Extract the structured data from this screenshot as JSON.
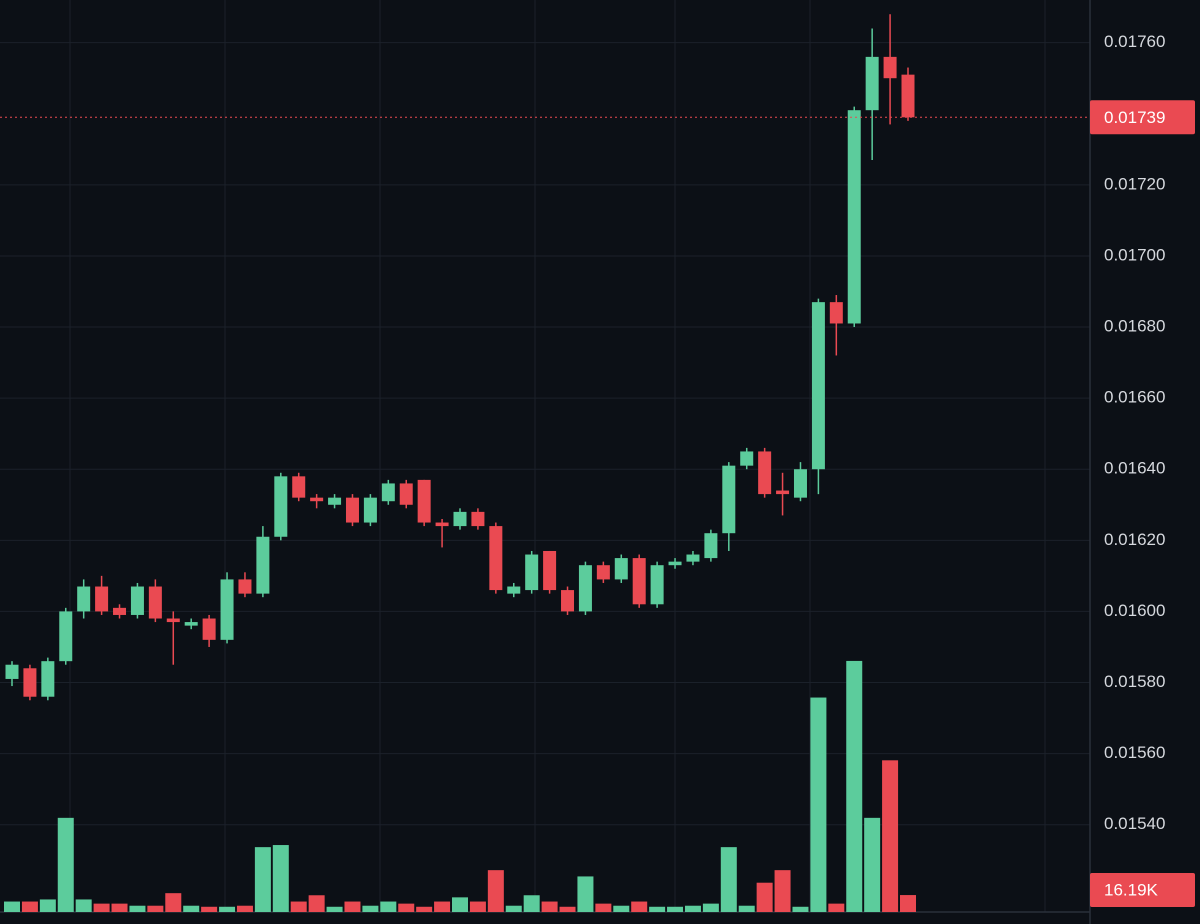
{
  "chart_data": {
    "type": "candlestick",
    "open": [
      0.01581,
      0.01584,
      0.01576,
      0.01586,
      0.016,
      0.01607,
      0.01601,
      0.01599,
      0.01607,
      0.01598,
      0.01596,
      0.01598,
      0.01592,
      0.01609,
      0.01605,
      0.01621,
      0.01638,
      0.01632,
      0.0163,
      0.01632,
      0.01625,
      0.01631,
      0.01636,
      0.01637,
      0.01625,
      0.01624,
      0.01628,
      0.01624,
      0.01605,
      0.01606,
      0.01617,
      0.01606,
      0.016,
      0.01613,
      0.01609,
      0.01615,
      0.01602,
      0.01613,
      0.01614,
      0.01615,
      0.01622,
      0.01641,
      0.01645,
      0.01634,
      0.01632,
      0.0164,
      0.01687,
      0.01681,
      0.01741,
      0.01756,
      0.01751
    ],
    "high": [
      0.01586,
      0.01585,
      0.01587,
      0.01601,
      0.01609,
      0.0161,
      0.01602,
      0.01608,
      0.01609,
      0.016,
      0.01598,
      0.01599,
      0.01611,
      0.01611,
      0.01624,
      0.01639,
      0.01639,
      0.01633,
      0.01633,
      0.01633,
      0.01633,
      0.01637,
      0.01637,
      0.01637,
      0.01626,
      0.01629,
      0.01629,
      0.01625,
      0.01608,
      0.01617,
      0.01617,
      0.01607,
      0.01614,
      0.01614,
      0.01616,
      0.01616,
      0.01614,
      0.01615,
      0.01617,
      0.01623,
      0.01642,
      0.01646,
      0.01646,
      0.01639,
      0.01642,
      0.01688,
      0.01689,
      0.01742,
      0.01764,
      0.01768,
      0.01753
    ],
    "low": [
      0.01579,
      0.01575,
      0.01575,
      0.01585,
      0.01598,
      0.01599,
      0.01598,
      0.01598,
      0.01597,
      0.01585,
      0.01595,
      0.0159,
      0.01591,
      0.01604,
      0.01604,
      0.0162,
      0.01631,
      0.01629,
      0.01629,
      0.01624,
      0.01624,
      0.0163,
      0.01629,
      0.01624,
      0.01618,
      0.01623,
      0.01623,
      0.01605,
      0.01604,
      0.01605,
      0.01605,
      0.01599,
      0.01599,
      0.01608,
      0.01608,
      0.01601,
      0.01601,
      0.01612,
      0.01613,
      0.01614,
      0.01617,
      0.0164,
      0.01632,
      0.01627,
      0.01631,
      0.01633,
      0.01672,
      0.0168,
      0.01727,
      0.01737,
      0.01738
    ],
    "close": [
      0.01585,
      0.01576,
      0.01586,
      0.016,
      0.01607,
      0.016,
      0.01599,
      0.01607,
      0.01598,
      0.01597,
      0.01597,
      0.01592,
      0.01609,
      0.01605,
      0.01621,
      0.01638,
      0.01632,
      0.01631,
      0.01632,
      0.01625,
      0.01632,
      0.01636,
      0.0163,
      0.01625,
      0.01624,
      0.01628,
      0.01624,
      0.01606,
      0.01607,
      0.01616,
      0.01606,
      0.016,
      0.01613,
      0.01609,
      0.01615,
      0.01602,
      0.01613,
      0.01614,
      0.01616,
      0.01622,
      0.01641,
      0.01645,
      0.01633,
      0.01633,
      0.0164,
      0.01687,
      0.01681,
      0.01741,
      0.01756,
      0.0175,
      0.01739
    ],
    "volume": [
      10,
      10,
      12,
      90,
      12,
      8,
      8,
      6,
      6,
      18,
      6,
      5,
      5,
      6,
      62,
      64,
      10,
      16,
      5,
      10,
      6,
      10,
      8,
      5,
      10,
      14,
      10,
      40,
      6,
      16,
      10,
      5,
      34,
      8,
      6,
      10,
      5,
      5,
      6,
      8,
      62,
      6,
      28,
      40,
      5,
      205,
      8,
      240,
      90,
      145,
      16.19
    ],
    "up_color": "#5ccc9c",
    "down_color": "#ea4a52",
    "ylim": [
      0.01516,
      0.01772
    ],
    "volume_lim": [
      0,
      260
    ],
    "yticks": [
      {
        "value": 0.0154,
        "label": "0.01540"
      },
      {
        "value": 0.0156,
        "label": "0.01560"
      },
      {
        "value": 0.0158,
        "label": "0.01580"
      },
      {
        "value": 0.016,
        "label": "0.01600"
      },
      {
        "value": 0.0162,
        "label": "0.01620"
      },
      {
        "value": 0.0164,
        "label": "0.01640"
      },
      {
        "value": 0.0166,
        "label": "0.01660"
      },
      {
        "value": 0.0168,
        "label": "0.01680"
      },
      {
        "value": 0.017,
        "label": "0.01700"
      },
      {
        "value": 0.0172,
        "label": "0.01720"
      },
      {
        "value": 0.0176,
        "label": "0.01760"
      }
    ],
    "last_price": 0.01739,
    "last_volume": {
      "value": 16.19,
      "label": "16.19K"
    },
    "grid": true
  }
}
